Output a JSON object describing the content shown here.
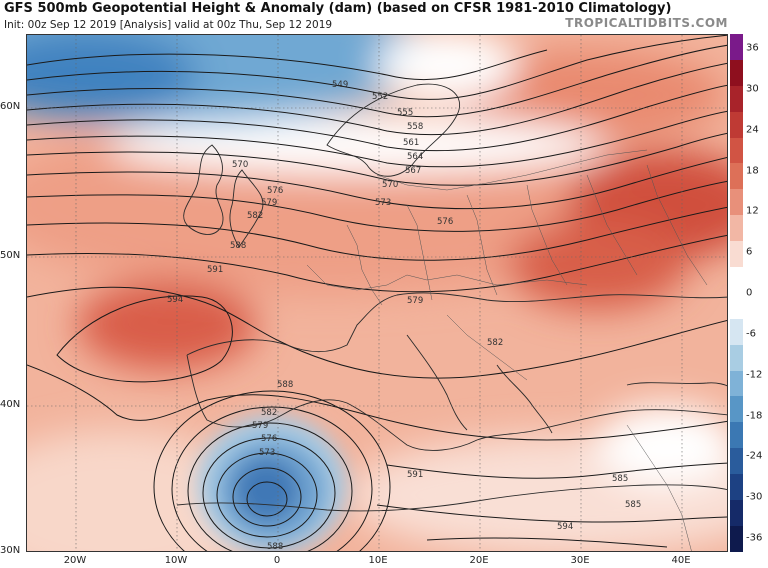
{
  "header": {
    "title": "GFS 500mb Geopotential Height & Anomaly (dam) (based on CFSR 1981-2010 Climatology)",
    "subtitle": "Init: 00z Sep 12 2019   [Analysis]   valid at 00z Thu, Sep 12 2019",
    "brand": "TROPICALTIDBITS.COM"
  },
  "axes": {
    "lat_labels": [
      "60N",
      "50N",
      "40N",
      "30N"
    ],
    "lon_labels": [
      "20W",
      "10W",
      "0",
      "10E",
      "20E",
      "30E",
      "40E"
    ]
  },
  "colorbar": {
    "labels": [
      "36",
      "30",
      "24",
      "18",
      "12",
      "6",
      "0",
      "-6",
      "-12",
      "-18",
      "-24",
      "-30",
      "-36"
    ],
    "colors": [
      "#7a1a8a",
      "#8e0f1e",
      "#a8232a",
      "#bf3a34",
      "#d15444",
      "#dd7058",
      "#e8907a",
      "#f2b7a5",
      "#f9dcd2",
      "#ffffff",
      "#ffffff",
      "#d6e6f2",
      "#a9cde3",
      "#7fb2d7",
      "#5896c6",
      "#3b78b3",
      "#2a5c9c",
      "#1d4183",
      "#152a68",
      "#0e1a4d"
    ]
  },
  "contour_labels": [
    "549",
    "552",
    "555",
    "558",
    "561",
    "564",
    "567",
    "570",
    "573",
    "576",
    "579",
    "582",
    "585",
    "588",
    "591",
    "594",
    "570",
    "576",
    "579",
    "582",
    "588",
    "591",
    "594",
    "573",
    "576",
    "579",
    "582",
    "585",
    "588",
    "591",
    "591",
    "585",
    "585",
    "591",
    "579",
    "582"
  ]
}
